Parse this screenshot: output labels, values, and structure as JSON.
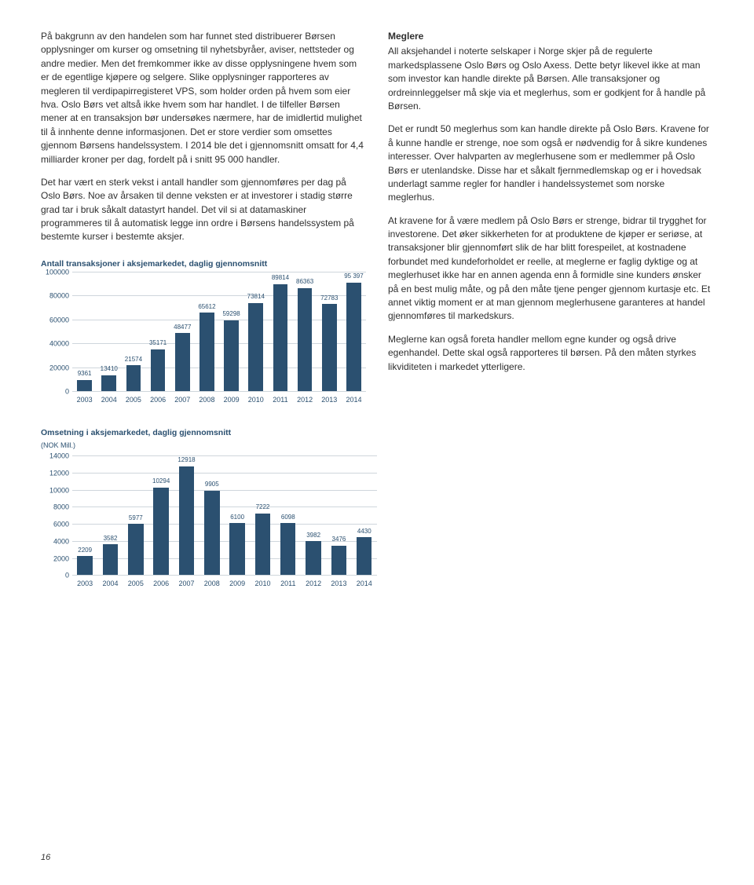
{
  "page_number": "16",
  "left_col": {
    "p1": "På bakgrunn av den handelen som har funnet sted distribuerer Børsen opplysninger om kurser og omsetning til nyhetsbyråer, aviser, nettsteder og andre medier. Men det fremkommer ikke av disse opplysningene hvem som er de egentlige kjøpere og selgere. Slike opplysninger rapporteres av megleren til verdipapirregisteret VPS, som holder orden på hvem som eier hva. Oslo Børs vet altså ikke hvem som har handlet. I de tilfeller Børsen mener at en transaksjon bør undersøkes nærmere, har de imidlertid mulighet til å innhente denne informasjonen. Det er store verdier som omsettes gjennom Børsens handelssystem. I 2014 ble det i gjennomsnitt omsatt for 4,4 milliarder kroner per dag, fordelt på i snitt 95 000 handler.",
    "p2": "Det har vært en sterk vekst i antall handler som gjennomføres per dag på Oslo Børs. Noe av årsaken til denne veksten er at investorer i stadig større grad tar i bruk såkalt datastyrt handel. Det vil si at datamaskiner programmeres til å automatisk legge inn ordre i Børsens handelssystem på bestemte kurser i bestemte aksjer."
  },
  "right_col": {
    "heading": "Meglere",
    "p1": "All aksjehandel i noterte selskaper i Norge skjer på de regulerte markedsplassene Oslo Børs og Oslo Axess. Dette betyr likevel ikke at man som investor kan handle direkte på Børsen. Alle transaksjoner og ordreinnleggelser må skje via et meglerhus, som er godkjent for å handle på Børsen.",
    "p2": "Det er rundt 50 meglerhus som kan handle direkte på Oslo Børs. Kravene for å kunne handle er strenge, noe som også er nødvendig for å sikre kundenes interesser. Over halvparten av meglerhusene som er medlemmer på Oslo Børs er utenlandske. Disse har et såkalt fjernmedlemskap og er i hovedsak underlagt samme regler for handler i handelssystemet som norske meglerhus.",
    "p3": "At kravene for å være medlem på Oslo Børs er strenge, bidrar til trygghet for investorene. Det øker sikkerheten for at produktene de kjøper er seriøse, at transaksjoner blir gjennomført slik de har blitt forespeilet, at kostnadene forbundet med kundeforholdet er reelle, at meglerne er faglig dyktige og at meglerhuset ikke har en annen agenda enn å formidle sine kunders ønsker på en best mulig måte, og på den måte tjene penger gjennom kurtasje etc. Et annet viktig moment er at man gjennom meglerhusene garanteres at handel gjennomføres til markedskurs.",
    "p4": "Meglerne kan også foreta handler mellom egne kunder og også drive egenhandel. Dette skal også rapporteres til børsen. På den måten styrkes likviditeten i markedet ytterligere."
  },
  "chart1": {
    "title": "Antall transaksjoner i aksjemarkedet, daglig gjennomsnitt",
    "type": "bar",
    "ymax": 100000,
    "ytick_step": 20000,
    "bar_color": "#2b5070",
    "grid_color": "#cfd6dc",
    "text_color": "#2b5070",
    "years": [
      "2003",
      "2004",
      "2005",
      "2006",
      "2007",
      "2008",
      "2009",
      "2010",
      "2011",
      "2012",
      "2013",
      "2014"
    ],
    "values": [
      9361,
      13410,
      21574,
      35171,
      48477,
      65612,
      59298,
      73814,
      89814,
      86363,
      72783,
      95397
    ],
    "labels": [
      "9361",
      "13410",
      "21574",
      "35171",
      "48477",
      "65612",
      "59298",
      "73814",
      "89814",
      "86363",
      "72783",
      "95 397"
    ]
  },
  "chart2": {
    "title": "Omsetning i aksjemarkedet, daglig gjennomsnitt",
    "subtitle": "(NOK Mill.)",
    "type": "bar",
    "ymax": 14000,
    "ytick_step": 2000,
    "bar_color": "#2b5070",
    "grid_color": "#cfd6dc",
    "text_color": "#2b5070",
    "years": [
      "2003",
      "2004",
      "2005",
      "2006",
      "2007",
      "2008",
      "2009",
      "2010",
      "2011",
      "2012",
      "2013",
      "2014"
    ],
    "values": [
      2209,
      3582,
      5977,
      10294,
      12918,
      9905,
      6100,
      7222,
      6098,
      3982,
      3476,
      4430
    ],
    "labels": [
      "2209",
      "3582",
      "5977",
      "10294",
      "12918",
      "9905",
      "6100",
      "7222",
      "6098",
      "3982",
      "3476",
      "4430"
    ]
  }
}
